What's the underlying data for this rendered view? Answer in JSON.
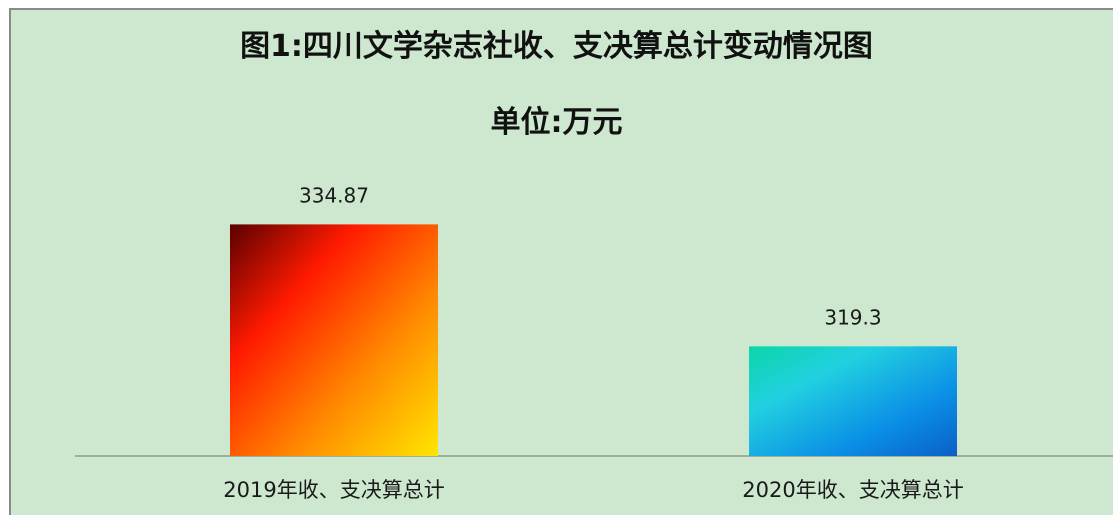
{
  "chart_data": {
    "type": "bar",
    "title": "图1:四川文学杂志社收、支决算总计变动情况图",
    "subtitle": "单位:万元",
    "categories": [
      "2019年收、支决算总计",
      "2020年收、支决算总计"
    ],
    "values": [
      334.87,
      319.3
    ],
    "data_labels": [
      "334.87",
      "319.3"
    ],
    "colors": {
      "bar_2019": [
        "#5a0000",
        "#ff1a00",
        "#ff8a00",
        "#ffe600"
      ],
      "bar_2020": [
        "#0ad6a8",
        "#22d0e0",
        "#0a8ee6",
        "#0b5fc8"
      ],
      "background": "#cde8cf"
    },
    "grid": false,
    "legend": "none"
  }
}
